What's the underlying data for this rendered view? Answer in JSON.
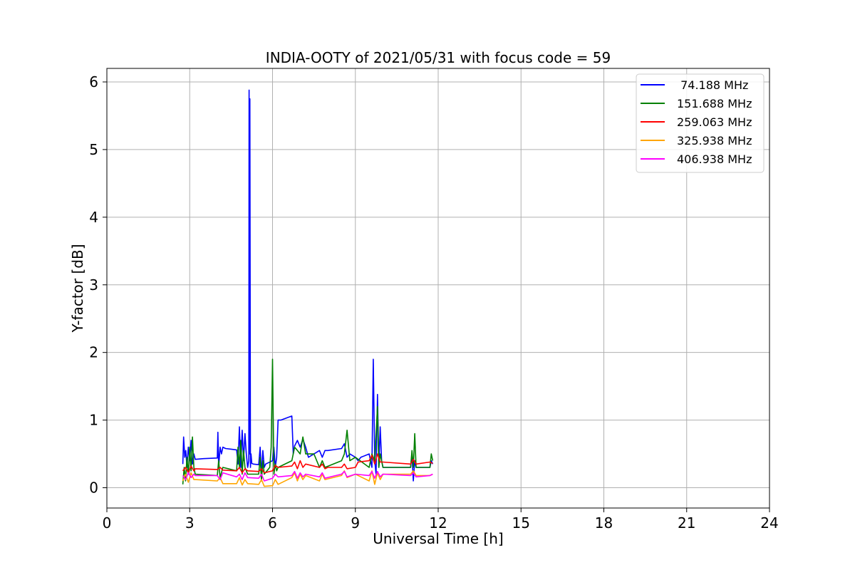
{
  "chart_data": {
    "type": "line",
    "title": "INDIA-OOTY of 2021/05/31 with focus code = 59",
    "xlabel": "Universal Time [h]",
    "ylabel": "Y-factor [dB]",
    "xlim": [
      0,
      24
    ],
    "ylim": [
      -0.3,
      6.2
    ],
    "xticks": [
      0,
      3,
      6,
      9,
      12,
      15,
      18,
      21,
      24
    ],
    "yticks": [
      0,
      1,
      2,
      3,
      4,
      5,
      6
    ],
    "xtick_labels": [
      "0",
      "3",
      "6",
      "9",
      "12",
      "15",
      "18",
      "21",
      "24"
    ],
    "ytick_labels": [
      "0",
      "1",
      "2",
      "3",
      "4",
      "5",
      "6"
    ],
    "grid": true,
    "legend_position": "top-right",
    "series": [
      {
        "name": " 74.188 MHz",
        "color": "#0000ff",
        "x": [
          2.75,
          2.78,
          2.82,
          2.86,
          2.9,
          2.95,
          3.0,
          3.05,
          3.1,
          3.15,
          3.2,
          3.5,
          4.0,
          4.02,
          4.05,
          4.1,
          4.15,
          4.2,
          4.3,
          4.5,
          4.7,
          4.75,
          4.8,
          4.85,
          4.9,
          4.95,
          5.0,
          5.05,
          5.1,
          5.14,
          5.15,
          5.17,
          5.18,
          5.2,
          5.22,
          5.25,
          5.3,
          5.5,
          5.55,
          5.6,
          5.65,
          5.7,
          5.75,
          6.0,
          6.05,
          6.1,
          6.15,
          6.2,
          6.25,
          6.3,
          6.7,
          6.75,
          6.8,
          6.9,
          7.0,
          7.1,
          7.2,
          7.3,
          7.5,
          7.7,
          7.8,
          7.9,
          8.0,
          8.5,
          8.6,
          8.7,
          8.8,
          9.0,
          9.1,
          9.2,
          9.5,
          9.6,
          9.65,
          9.7,
          9.75,
          9.8,
          9.85,
          9.9,
          9.95,
          10.0,
          11.0,
          11.05,
          11.1,
          11.15,
          11.2,
          11.7,
          11.75,
          11.8
        ],
        "y": [
          0.35,
          0.75,
          0.45,
          0.55,
          0.3,
          0.6,
          0.4,
          0.7,
          0.35,
          0.5,
          0.42,
          0.43,
          0.44,
          0.82,
          0.3,
          0.6,
          0.5,
          0.6,
          0.58,
          0.57,
          0.56,
          0.35,
          0.9,
          0.3,
          0.85,
          0.4,
          0.8,
          0.5,
          0.3,
          0.4,
          5.88,
          0.5,
          5.75,
          0.3,
          0.5,
          0.36,
          0.35,
          0.34,
          0.6,
          0.2,
          0.55,
          0.3,
          0.35,
          0.4,
          0.6,
          0.3,
          0.45,
          1.0,
          1.0,
          1.0,
          1.06,
          0.5,
          0.62,
          0.7,
          0.6,
          0.72,
          0.6,
          0.45,
          0.5,
          0.55,
          0.45,
          0.55,
          0.55,
          0.58,
          0.65,
          0.45,
          0.5,
          0.45,
          0.4,
          0.45,
          0.5,
          0.3,
          1.9,
          0.4,
          0.2,
          1.38,
          0.3,
          0.9,
          0.4,
          0.3,
          0.3,
          0.5,
          0.1,
          0.4,
          0.3,
          0.3,
          0.4,
          0.35
        ]
      },
      {
        "name": "151.688 MHz",
        "color": "#008000",
        "x": [
          2.75,
          2.8,
          2.85,
          2.9,
          2.95,
          3.0,
          3.05,
          3.1,
          3.15,
          3.2,
          4.0,
          4.05,
          4.1,
          4.2,
          4.7,
          4.75,
          4.8,
          4.85,
          4.9,
          4.95,
          5.0,
          5.1,
          5.5,
          5.55,
          5.6,
          5.65,
          5.7,
          5.9,
          5.95,
          6.0,
          6.05,
          6.1,
          6.15,
          6.2,
          6.7,
          6.8,
          6.9,
          7.0,
          7.1,
          7.2,
          7.5,
          7.7,
          7.8,
          7.9,
          8.5,
          8.6,
          8.7,
          8.8,
          9.0,
          9.5,
          9.6,
          9.7,
          9.8,
          9.85,
          9.9,
          10.0,
          11.0,
          11.05,
          11.1,
          11.15,
          11.2,
          11.7,
          11.75,
          11.8
        ],
        "y": [
          0.05,
          0.3,
          0.1,
          0.45,
          0.2,
          0.6,
          0.25,
          0.75,
          0.3,
          0.2,
          0.18,
          0.4,
          0.15,
          0.3,
          0.25,
          0.6,
          0.3,
          0.7,
          0.2,
          0.55,
          0.3,
          0.2,
          0.2,
          0.45,
          0.1,
          0.4,
          0.2,
          0.3,
          0.6,
          1.9,
          0.2,
          0.35,
          0.25,
          0.3,
          0.4,
          0.6,
          0.55,
          0.5,
          0.75,
          0.5,
          0.5,
          0.3,
          0.4,
          0.3,
          0.4,
          0.5,
          0.85,
          0.4,
          0.45,
          0.3,
          0.5,
          0.4,
          1.2,
          0.3,
          0.5,
          0.3,
          0.3,
          0.55,
          0.3,
          0.8,
          0.3,
          0.3,
          0.5,
          0.4
        ]
      },
      {
        "name": "259.063 MHz",
        "color": "#ff0000",
        "x": [
          2.75,
          2.85,
          2.95,
          3.05,
          3.15,
          3.2,
          4.0,
          4.1,
          4.2,
          4.7,
          4.8,
          4.9,
          5.0,
          5.1,
          5.5,
          5.6,
          5.7,
          6.0,
          6.1,
          6.2,
          6.7,
          6.8,
          6.9,
          7.0,
          7.1,
          7.2,
          7.7,
          7.8,
          7.9,
          8.0,
          8.5,
          8.6,
          8.7,
          9.0,
          9.1,
          9.5,
          9.6,
          9.7,
          9.8,
          9.9,
          10.0,
          11.0,
          11.1,
          11.2,
          11.7,
          11.8
        ],
        "y": [
          0.25,
          0.3,
          0.22,
          0.32,
          0.25,
          0.28,
          0.27,
          0.3,
          0.26,
          0.25,
          0.3,
          0.22,
          0.28,
          0.25,
          0.24,
          0.28,
          0.22,
          0.25,
          0.33,
          0.3,
          0.32,
          0.38,
          0.28,
          0.4,
          0.3,
          0.35,
          0.3,
          0.35,
          0.28,
          0.3,
          0.3,
          0.35,
          0.28,
          0.3,
          0.38,
          0.4,
          0.48,
          0.35,
          0.5,
          0.38,
          0.38,
          0.35,
          0.42,
          0.35,
          0.38,
          0.36
        ]
      },
      {
        "name": "325.938 MHz",
        "color": "#ffa500",
        "x": [
          2.75,
          2.85,
          2.95,
          3.05,
          3.15,
          3.2,
          4.0,
          4.1,
          4.2,
          4.7,
          4.8,
          4.9,
          5.0,
          5.1,
          5.5,
          5.6,
          5.7,
          6.0,
          6.1,
          6.2,
          6.7,
          6.8,
          6.9,
          7.0,
          7.1,
          7.2,
          7.7,
          7.8,
          7.9,
          8.5,
          8.6,
          8.7,
          9.0,
          9.5,
          9.6,
          9.7,
          9.8,
          9.9,
          10.0,
          11.0,
          11.1,
          11.2,
          11.7,
          11.8
        ],
        "y": [
          0.1,
          0.2,
          0.08,
          0.22,
          0.12,
          0.12,
          0.1,
          0.15,
          0.06,
          0.06,
          0.15,
          0.04,
          0.12,
          0.06,
          0.05,
          0.12,
          0.02,
          0.03,
          0.12,
          0.05,
          0.15,
          0.22,
          0.1,
          0.2,
          0.12,
          0.18,
          0.1,
          0.2,
          0.12,
          0.18,
          0.25,
          0.15,
          0.2,
          0.1,
          0.25,
          0.05,
          0.22,
          0.12,
          0.2,
          0.2,
          0.25,
          0.18,
          0.18,
          0.2
        ]
      },
      {
        "name": "406.938 MHz",
        "color": "#ff00ff",
        "x": [
          2.75,
          2.85,
          2.95,
          3.05,
          3.15,
          3.2,
          4.0,
          4.1,
          4.2,
          4.7,
          4.8,
          4.9,
          5.0,
          5.1,
          5.5,
          5.6,
          5.7,
          6.0,
          6.1,
          6.2,
          6.7,
          6.8,
          6.9,
          7.0,
          7.1,
          7.2,
          7.7,
          7.8,
          7.9,
          8.5,
          8.6,
          8.7,
          9.0,
          9.5,
          9.6,
          9.7,
          9.8,
          9.9,
          10.0,
          11.0,
          11.1,
          11.2,
          11.7,
          11.8
        ],
        "y": [
          0.18,
          0.12,
          0.22,
          0.15,
          0.2,
          0.18,
          0.18,
          0.12,
          0.22,
          0.16,
          0.2,
          0.12,
          0.22,
          0.15,
          0.14,
          0.2,
          0.1,
          0.14,
          0.2,
          0.16,
          0.18,
          0.24,
          0.14,
          0.22,
          0.16,
          0.2,
          0.16,
          0.22,
          0.14,
          0.2,
          0.24,
          0.16,
          0.2,
          0.18,
          0.24,
          0.14,
          0.24,
          0.16,
          0.2,
          0.18,
          0.22,
          0.16,
          0.18,
          0.2
        ]
      }
    ]
  }
}
